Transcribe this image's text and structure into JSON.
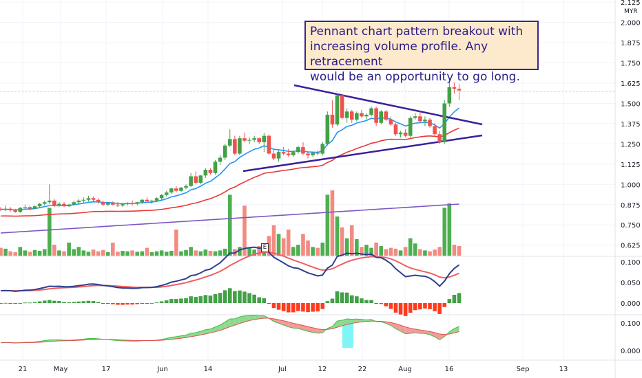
{
  "annotation": {
    "line1": "Pennant chart pattern breakout with",
    "line2": "increasing volume profile. Any retracement",
    "line3": "would be an opportunity to go long."
  },
  "currency": "MYR",
  "earnings_marker": "E",
  "colors": {
    "up": "#43a047",
    "down": "#ef5350",
    "volume_up": "#4caf50",
    "volume_down": "#f28b82",
    "ema_fast": "#2196f3",
    "ema_mid": "#e53935",
    "ema_slow": "#7e57c2",
    "trendline": "#3b1f9a",
    "macd": "#2c3e8f",
    "signal": "#ef5f5f"
  },
  "chart_data": {
    "type": "candlestick",
    "x_ticks": [
      "21",
      "May",
      "17",
      "Jun",
      "14",
      "Jul",
      "12",
      "22",
      "Aug",
      "16",
      "Sep",
      "13"
    ],
    "price_axis": {
      "ticks": [
        "2.125",
        "2.000",
        "1.875",
        "1.750",
        "1.625",
        "1.500",
        "1.375",
        "1.250",
        "1.125",
        "1.000",
        "0.875",
        "0.750",
        "0.625"
      ],
      "ylim": [
        0.56,
        2.13
      ]
    },
    "candles": [
      [
        0.85,
        0.86,
        0.835,
        0.845
      ],
      [
        0.845,
        0.87,
        0.835,
        0.85
      ],
      [
        0.85,
        0.86,
        0.83,
        0.84
      ],
      [
        0.84,
        0.85,
        0.825,
        0.83
      ],
      [
        0.83,
        0.86,
        0.825,
        0.855
      ],
      [
        0.855,
        0.875,
        0.845,
        0.86
      ],
      [
        0.86,
        0.87,
        0.84,
        0.85
      ],
      [
        0.85,
        0.87,
        0.845,
        0.865
      ],
      [
        0.865,
        0.885,
        0.855,
        0.88
      ],
      [
        0.88,
        0.9,
        0.87,
        0.89
      ],
      [
        0.89,
        1.0,
        0.88,
        0.9
      ],
      [
        0.9,
        0.91,
        0.86,
        0.87
      ],
      [
        0.87,
        0.89,
        0.86,
        0.88
      ],
      [
        0.88,
        0.89,
        0.86,
        0.865
      ],
      [
        0.865,
        0.88,
        0.86,
        0.875
      ],
      [
        0.875,
        0.9,
        0.87,
        0.89
      ],
      [
        0.89,
        0.91,
        0.88,
        0.9
      ],
      [
        0.9,
        0.92,
        0.885,
        0.905
      ],
      [
        0.905,
        0.93,
        0.895,
        0.915
      ],
      [
        0.915,
        0.925,
        0.895,
        0.905
      ],
      [
        0.905,
        0.915,
        0.88,
        0.89
      ],
      [
        0.89,
        0.9,
        0.865,
        0.875
      ],
      [
        0.875,
        0.89,
        0.865,
        0.885
      ],
      [
        0.885,
        0.895,
        0.87,
        0.875
      ],
      [
        0.875,
        0.89,
        0.86,
        0.87
      ],
      [
        0.87,
        0.88,
        0.86,
        0.878
      ],
      [
        0.878,
        0.89,
        0.868,
        0.885
      ],
      [
        0.885,
        0.9,
        0.87,
        0.88
      ],
      [
        0.88,
        0.892,
        0.87,
        0.89
      ],
      [
        0.89,
        0.91,
        0.88,
        0.905
      ],
      [
        0.905,
        0.92,
        0.885,
        0.895
      ],
      [
        0.895,
        0.905,
        0.88,
        0.9
      ],
      [
        0.9,
        0.92,
        0.89,
        0.915
      ],
      [
        0.915,
        0.94,
        0.905,
        0.935
      ],
      [
        0.935,
        0.96,
        0.925,
        0.95
      ],
      [
        0.95,
        0.98,
        0.94,
        0.975
      ],
      [
        0.975,
        0.99,
        0.95,
        0.96
      ],
      [
        0.96,
        0.985,
        0.955,
        0.98
      ],
      [
        0.98,
        1.0,
        0.97,
        0.99
      ],
      [
        0.99,
        1.07,
        0.985,
        1.05
      ],
      [
        1.05,
        1.08,
        1.0,
        1.01
      ],
      [
        1.01,
        1.06,
        1.0,
        1.055
      ],
      [
        1.055,
        1.1,
        1.04,
        1.09
      ],
      [
        1.09,
        1.1,
        1.06,
        1.07
      ],
      [
        1.07,
        1.15,
        1.06,
        1.14
      ],
      [
        1.14,
        1.18,
        1.12,
        1.165
      ],
      [
        1.165,
        1.25,
        1.15,
        1.24
      ],
      [
        1.24,
        1.34,
        1.23,
        1.28
      ],
      [
        1.28,
        1.3,
        1.18,
        1.19
      ],
      [
        1.19,
        1.3,
        1.18,
        1.285
      ],
      [
        1.285,
        1.32,
        1.26,
        1.27
      ],
      [
        1.27,
        1.29,
        1.25,
        1.275
      ],
      [
        1.275,
        1.3,
        1.26,
        1.285
      ],
      [
        1.285,
        1.29,
        1.25,
        1.26
      ],
      [
        1.26,
        1.32,
        1.2,
        1.3
      ],
      [
        1.3,
        1.31,
        1.18,
        1.19
      ],
      [
        1.19,
        1.22,
        1.15,
        1.16
      ],
      [
        1.16,
        1.21,
        1.14,
        1.2
      ],
      [
        1.2,
        1.23,
        1.18,
        1.19
      ],
      [
        1.19,
        1.22,
        1.17,
        1.18
      ],
      [
        1.18,
        1.21,
        1.17,
        1.2
      ],
      [
        1.2,
        1.24,
        1.19,
        1.23
      ],
      [
        1.23,
        1.26,
        1.18,
        1.19
      ],
      [
        1.19,
        1.2,
        1.16,
        1.18
      ],
      [
        1.18,
        1.2,
        1.17,
        1.195
      ],
      [
        1.195,
        1.21,
        1.18,
        1.19
      ],
      [
        1.19,
        1.26,
        1.18,
        1.25
      ],
      [
        1.25,
        1.45,
        1.24,
        1.43
      ],
      [
        1.43,
        1.52,
        1.35,
        1.37
      ],
      [
        1.37,
        1.56,
        1.36,
        1.55
      ],
      [
        1.55,
        1.56,
        1.4,
        1.41
      ],
      [
        1.41,
        1.47,
        1.38,
        1.45
      ],
      [
        1.45,
        1.46,
        1.38,
        1.4
      ],
      [
        1.4,
        1.45,
        1.39,
        1.44
      ],
      [
        1.44,
        1.46,
        1.41,
        1.42
      ],
      [
        1.42,
        1.44,
        1.4,
        1.43
      ],
      [
        1.43,
        1.48,
        1.42,
        1.47
      ],
      [
        1.47,
        1.48,
        1.36,
        1.38
      ],
      [
        1.38,
        1.46,
        1.37,
        1.45
      ],
      [
        1.45,
        1.46,
        1.39,
        1.4
      ],
      [
        1.4,
        1.42,
        1.36,
        1.37
      ],
      [
        1.37,
        1.38,
        1.3,
        1.31
      ],
      [
        1.31,
        1.33,
        1.29,
        1.32
      ],
      [
        1.32,
        1.34,
        1.29,
        1.3
      ],
      [
        1.3,
        1.42,
        1.29,
        1.41
      ],
      [
        1.41,
        1.44,
        1.4,
        1.42
      ],
      [
        1.42,
        1.45,
        1.38,
        1.39
      ],
      [
        1.39,
        1.42,
        1.36,
        1.4
      ],
      [
        1.4,
        1.41,
        1.35,
        1.36
      ],
      [
        1.36,
        1.38,
        1.3,
        1.31
      ],
      [
        1.31,
        1.33,
        1.25,
        1.26
      ],
      [
        1.26,
        1.52,
        1.25,
        1.5
      ],
      [
        1.5,
        1.65,
        1.48,
        1.6
      ],
      [
        1.6,
        1.63,
        1.56,
        1.59
      ],
      [
        1.59,
        1.62,
        1.52,
        1.58
      ]
    ],
    "volume": [
      0.18,
      0.16,
      0.1,
      0.08,
      0.2,
      0.12,
      0.09,
      0.13,
      0.11,
      0.15,
      1.1,
      0.25,
      0.12,
      0.1,
      0.3,
      0.15,
      0.2,
      0.12,
      0.09,
      0.14,
      0.1,
      0.13,
      0.08,
      0.3,
      0.09,
      0.11,
      0.1,
      0.12,
      0.09,
      0.1,
      0.18,
      0.08,
      0.1,
      0.12,
      0.09,
      0.11,
      0.6,
      0.1,
      0.13,
      0.2,
      0.12,
      0.1,
      0.14,
      0.11,
      0.1,
      0.12,
      0.16,
      1.4,
      0.15,
      0.2,
      1.15,
      0.18,
      0.14,
      0.22,
      0.12,
      0.45,
      0.7,
      0.5,
      0.4,
      0.6,
      0.2,
      0.25,
      0.5,
      0.35,
      0.2,
      0.18,
      0.3,
      1.4,
      1.5,
      0.9,
      0.65,
      0.4,
      0.7,
      0.38,
      0.2,
      0.25,
      0.18,
      0.3,
      0.22,
      0.15,
      0.18,
      0.16,
      0.12,
      0.2,
      0.4,
      0.28,
      0.15,
      0.12,
      0.1,
      0.14,
      0.2,
      1.1,
      1.2,
      0.25,
      0.22
    ],
    "macd_axis": {
      "ticks": [
        "0.100",
        "0.050",
        "0.000"
      ]
    },
    "osc_axis": {
      "ticks": [
        "0.100",
        "0.000"
      ]
    }
  }
}
